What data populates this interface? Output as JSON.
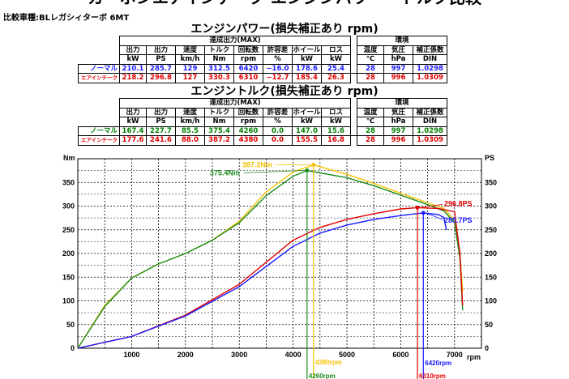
{
  "page": {
    "title": "カーボンエアインテーク エンジンパワー・トルク比較",
    "vehicle": "比較車種:BLレガシィターボ 6MT"
  },
  "power_table": {
    "title": "エンジンパワー(損失補正あり  rpm)",
    "group_label": "達成出力(MAX)",
    "env_label": "環境",
    "columns": [
      {
        "name": "出力",
        "unit": "kW"
      },
      {
        "name": "出力",
        "unit": "PS"
      },
      {
        "name": "速度",
        "unit": "km/h"
      },
      {
        "name": "トルク",
        "unit": "Nm"
      },
      {
        "name": "回転数",
        "unit": "rpm"
      },
      {
        "name": "許容差",
        "unit": "%"
      },
      {
        "name": "ホイール",
        "unit": "kW"
      },
      {
        "name": "ロス",
        "unit": "kW"
      }
    ],
    "env_columns": [
      {
        "name": "温度",
        "unit": "℃"
      },
      {
        "name": "気圧",
        "unit": "hPa"
      },
      {
        "name": "補正係数",
        "unit": "DIN"
      }
    ],
    "rows": [
      {
        "label": "ノーマル",
        "values": [
          "210.1",
          "285.7",
          "129",
          "312.5",
          "6420",
          "−16.0",
          "178.6",
          "25.4"
        ],
        "env": [
          "28",
          "997",
          "1.0298"
        ]
      },
      {
        "label": "エアインテーク",
        "values": [
          "218.2",
          "296.8",
          "127",
          "330.3",
          "6310",
          "−12.7",
          "185.4",
          "26.3"
        ],
        "env": [
          "28",
          "996",
          "1.0309"
        ]
      }
    ]
  },
  "torque_table": {
    "title": "エンジントルク(損失補正あり  rpm)",
    "group_label": "達成出力(MAX)",
    "env_label": "環境",
    "columns": [
      {
        "name": "出力",
        "unit": "kW"
      },
      {
        "name": "出力",
        "unit": "PS"
      },
      {
        "name": "速度",
        "unit": "km/h"
      },
      {
        "name": "トルク",
        "unit": "Nm"
      },
      {
        "name": "回転数",
        "unit": "rpm"
      },
      {
        "name": "許容差",
        "unit": "%"
      },
      {
        "name": "ホイール",
        "unit": "kW"
      },
      {
        "name": "ロス",
        "unit": "kW"
      }
    ],
    "env_columns": [
      {
        "name": "温度",
        "unit": "℃"
      },
      {
        "name": "気圧",
        "unit": "hPa"
      },
      {
        "name": "補正係数",
        "unit": "DIN"
      }
    ],
    "rows": [
      {
        "label": "ノーマル",
        "values": [
          "167.4",
          "227.7",
          "85.5",
          "375.4",
          "4260",
          "0.0",
          "147.0",
          "15.6"
        ],
        "env": [
          "28",
          "997",
          "1.0298"
        ]
      },
      {
        "label": "エアインテーク",
        "values": [
          "177.6",
          "241.6",
          "88.0",
          "387.2",
          "4380",
          "0.0",
          "155.5",
          "16.8"
        ],
        "env": [
          "28",
          "996",
          "1.0309"
        ]
      }
    ]
  },
  "chart_data": {
    "type": "line",
    "xlabel": "rpm",
    "ylabel_left": "Nm",
    "ylabel_right": "PS",
    "xlim": [
      0,
      7500
    ],
    "ylim_left": [
      0,
      400
    ],
    "ylim_right": [
      0,
      400
    ],
    "x_ticks": [
      1000,
      2000,
      3000,
      4000,
      5000,
      6000,
      7000
    ],
    "y_ticks": [
      0,
      50,
      100,
      150,
      200,
      250,
      300,
      350
    ],
    "grid": true,
    "series": [
      {
        "axis": "left",
        "color": "#f5c000",
        "x": [
          0,
          500,
          1000,
          1500,
          2000,
          2500,
          3000,
          3500,
          4000,
          4380,
          5000,
          5500,
          6000,
          6500,
          6800,
          7000,
          7100,
          7150
        ],
        "values": [
          0,
          90,
          148,
          178,
          200,
          228,
          268,
          330,
          372,
          387,
          367,
          348,
          327,
          307,
          295,
          270,
          200,
          120
        ]
      },
      {
        "axis": "left",
        "color": "#1a8c1a",
        "x": [
          0,
          500,
          1000,
          1500,
          2000,
          2500,
          3000,
          3500,
          4000,
          4260,
          5000,
          5500,
          6000,
          6500,
          6800,
          7000,
          7100,
          7150
        ],
        "values": [
          0,
          88,
          148,
          178,
          200,
          228,
          265,
          322,
          363,
          375,
          360,
          343,
          323,
          303,
          290,
          265,
          190,
          80
        ]
      },
      {
        "axis": "right",
        "color": "#e00000",
        "x": [
          0,
          1000,
          2000,
          3000,
          4000,
          4500,
          5000,
          5500,
          6000,
          6310,
          6700,
          7000,
          7100,
          7150
        ],
        "values": [
          0,
          25,
          70,
          135,
          228,
          255,
          272,
          284,
          294,
          296.8,
          295,
          288,
          200,
          90
        ]
      },
      {
        "axis": "right",
        "color": "#1a1aff",
        "x": [
          0,
          1000,
          2000,
          3000,
          4000,
          4500,
          5000,
          5500,
          6000,
          6420,
          6700,
          6800,
          6850
        ],
        "values": [
          0,
          25,
          68,
          130,
          215,
          243,
          260,
          272,
          280,
          285.7,
          282,
          276,
          250
        ]
      }
    ],
    "annotations": [
      {
        "text": "387.2Nm",
        "color": "#f5c000",
        "x": 4380,
        "y": 387.2
      },
      {
        "text": "375.4Nm",
        "color": "#1a8c1a",
        "x": 4260,
        "y": 375.4
      },
      {
        "text": "296.8PS",
        "color": "#e00000",
        "x": 6310,
        "y": 296.8
      },
      {
        "text": "285.7PS",
        "color": "#1a1aff",
        "x": 6420,
        "y": 285.7
      },
      {
        "text": "4380rpm",
        "color": "#f5c000",
        "x": 4380
      },
      {
        "text": "4260rpm",
        "color": "#1a8c1a",
        "x": 4260
      },
      {
        "text": "6420rpm",
        "color": "#1a1aff",
        "x": 6420
      },
      {
        "text": "6310rpm",
        "color": "#e00000",
        "x": 6310
      }
    ]
  }
}
